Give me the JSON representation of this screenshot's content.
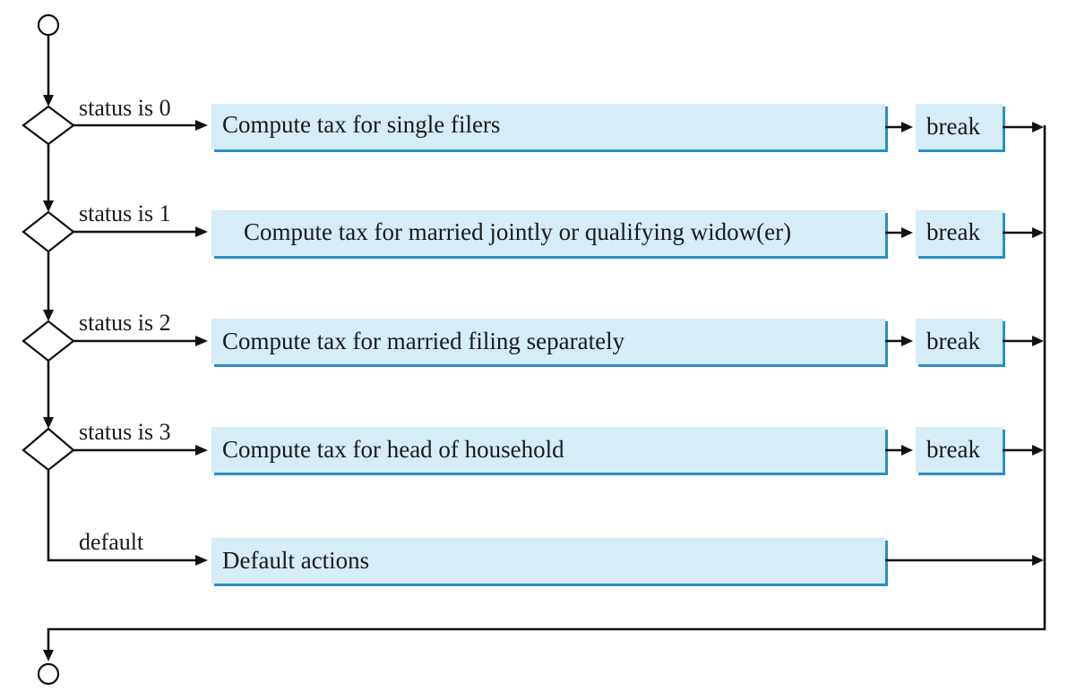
{
  "rows": [
    {
      "case_label": "status is 0",
      "action": "Compute tax for single filers",
      "break_label": "break"
    },
    {
      "case_label": "status is 1",
      "action": "Compute tax for married jointly or qualifying widow(er)",
      "break_label": "break"
    },
    {
      "case_label": "status is 2",
      "action": "Compute tax for married filing separately",
      "break_label": "break"
    },
    {
      "case_label": "status is 3",
      "action": "Compute tax for head of household",
      "break_label": "break"
    }
  ],
  "default_row": {
    "case_label": "default",
    "action": "Default actions"
  },
  "colors": {
    "box_fill": "#d6ecf7",
    "box_edge": "#2a8fc4",
    "line": "#111111"
  }
}
